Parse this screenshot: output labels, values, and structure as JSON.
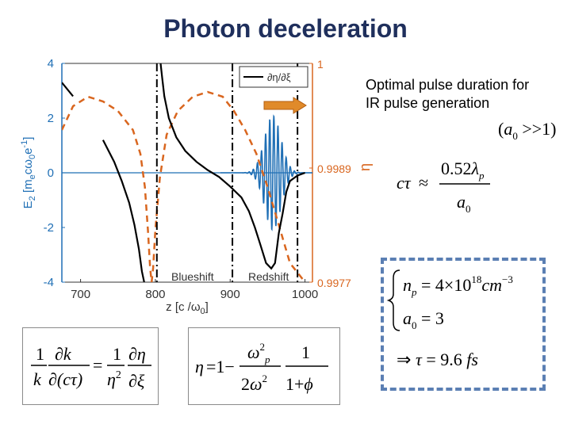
{
  "title": "Photon deceleration",
  "note": {
    "line1": "Optimal pulse duration for",
    "line2": "IR pulse generation"
  },
  "chart_data": {
    "type": "line",
    "xlabel": "z [c /ω0]",
    "ylabel_left": "E2 [mecω0e-1]",
    "ylabel_right": "η",
    "xlim": [
      675,
      1010
    ],
    "ylim_left": [
      -4,
      4
    ],
    "ylim_right": [
      0.9977,
      1
    ],
    "x_ticks": [
      "700",
      "800",
      "900",
      "1000"
    ],
    "y_ticks_left": [
      "4",
      "2",
      "0",
      "-2",
      "-4"
    ],
    "y_ticks_right": [
      "1",
      "0.9989",
      "0.9977"
    ],
    "legend": {
      "label": "∂η/∂ξ",
      "position": "top-right"
    },
    "annotations": [
      "Blueshift",
      "Redshift"
    ],
    "series": [
      {
        "name": "∂η/∂ξ",
        "color": "#000000",
        "axis": "left",
        "points": [
          [
            675,
            3.3
          ],
          [
            690,
            2.8
          ],
          [
            710,
            2.0
          ],
          [
            730,
            1.2
          ],
          [
            745,
            0.4
          ],
          [
            755,
            -0.3
          ],
          [
            765,
            -1.1
          ],
          [
            772,
            -1.9
          ],
          [
            778,
            -2.8
          ],
          [
            782,
            -3.6
          ],
          [
            785,
            -4.0
          ],
          [
            807,
            4.0
          ],
          [
            809,
            3.5
          ],
          [
            812,
            2.8
          ],
          [
            818,
            2.0
          ],
          [
            828,
            1.3
          ],
          [
            840,
            0.8
          ],
          [
            855,
            0.4
          ],
          [
            870,
            0.1
          ],
          [
            885,
            -0.15
          ],
          [
            900,
            -0.5
          ],
          [
            915,
            -0.9
          ],
          [
            925,
            -1.4
          ],
          [
            933,
            -2.0
          ],
          [
            940,
            -2.6
          ],
          [
            948,
            -3.3
          ],
          [
            955,
            -3.5
          ],
          [
            960,
            -3.3
          ],
          [
            965,
            -2.2
          ],
          [
            970,
            -1.5
          ],
          [
            975,
            -0.7
          ],
          [
            980,
            -0.3
          ],
          [
            990,
            -0.1
          ],
          [
            1000,
            0
          ]
        ]
      },
      {
        "color": "#d9661f",
        "axis": "right",
        "dashed": true,
        "points": [
          [
            675,
            0.9993
          ],
          [
            690,
            0.99955
          ],
          [
            710,
            0.99965
          ],
          [
            730,
            0.9996
          ],
          [
            750,
            0.9995
          ],
          [
            770,
            0.9993
          ],
          [
            780,
            0.99905
          ],
          [
            786,
            0.9987
          ],
          [
            790,
            0.99825
          ],
          [
            793,
            0.99785
          ],
          [
            795,
            0.9977
          ],
          [
            797,
            0.99785
          ],
          [
            800,
            0.99825
          ],
          [
            806,
            0.9988
          ],
          [
            815,
            0.99925
          ],
          [
            830,
            0.9995
          ],
          [
            850,
            0.99965
          ],
          [
            870,
            0.9997
          ],
          [
            890,
            0.99965
          ],
          [
            905,
            0.9995
          ],
          [
            920,
            0.9993
          ],
          [
            935,
            0.99905
          ],
          [
            950,
            0.9987
          ],
          [
            965,
            0.9983
          ],
          [
            980,
            0.9979
          ],
          [
            995,
            0.99775
          ],
          [
            1000,
            0.9977
          ]
        ]
      }
    ],
    "pulse": {
      "color": "#1f6fb5",
      "axis": "left",
      "center": 957,
      "width": 28,
      "amplitude": 2.1,
      "wavelength": 5.5
    },
    "vlines": [
      {
        "x": 802,
        "style": "dashdot",
        "color": "#000000"
      },
      {
        "x": 903,
        "style": "dashdot",
        "color": "#000000"
      },
      {
        "x": 990,
        "style": "dashdot",
        "color": "#000000"
      }
    ]
  },
  "equations": {
    "eq1": "1/k ∂k/∂(cτ) = 1/η² ∂η/∂ξ",
    "eq2": "η = 1 − ωp²/(2ω²) · 1/(1+φ)",
    "eq3": "(a0 >> 1)",
    "eq4": "cτ ≈ 0.52λp / a0",
    "eq5": "np = 4×10^18 cm^-3",
    "eq6": "a0 = 3",
    "eq7": "⇒ τ = 9.6 fs"
  }
}
